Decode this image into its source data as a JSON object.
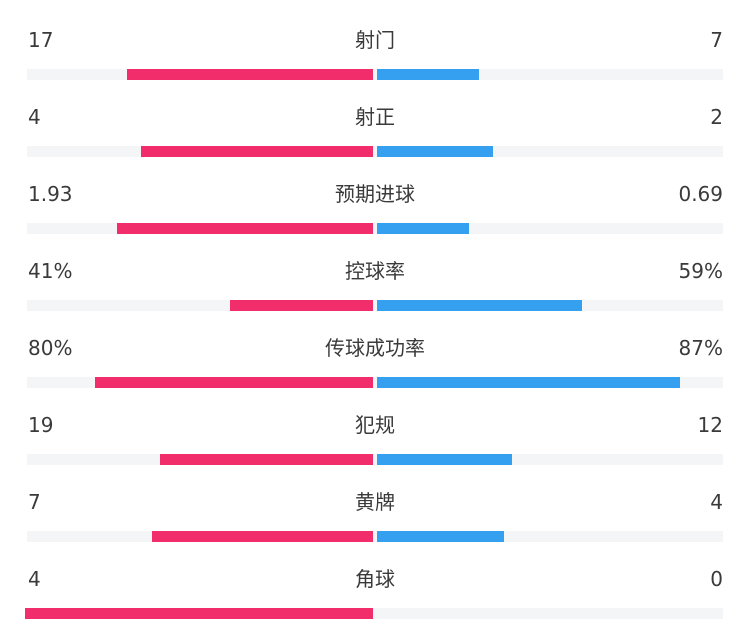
{
  "colors": {
    "home": "#f22d6c",
    "away": "#35a0f0",
    "track": "#f4f5f7"
  },
  "chart_data": {
    "type": "bar",
    "orientation": "diverging-horizontal",
    "categories": [
      "射门",
      "射正",
      "预期进球",
      "控球率",
      "传球成功率",
      "犯规",
      "黄牌",
      "角球"
    ],
    "rows": [
      {
        "label": "射门",
        "left": "17",
        "right": "7",
        "lval": 17,
        "rval": 7
      },
      {
        "label": "射正",
        "left": "4",
        "right": "2",
        "lval": 4,
        "rval": 2
      },
      {
        "label": "预期进球",
        "left": "1.93",
        "right": "0.69",
        "lval": 1.93,
        "rval": 0.69
      },
      {
        "label": "控球率",
        "left": "41%",
        "right": "59%",
        "lval": 41,
        "rval": 59,
        "percent": true
      },
      {
        "label": "传球成功率",
        "left": "80%",
        "right": "87%",
        "lval": 80,
        "rval": 87,
        "percent": true
      },
      {
        "label": "犯规",
        "left": "19",
        "right": "12",
        "lval": 19,
        "rval": 12
      },
      {
        "label": "黄牌",
        "left": "7",
        "right": "4",
        "lval": 7,
        "rval": 4
      },
      {
        "label": "角球",
        "left": "4",
        "right": "0",
        "lval": 4,
        "rval": 0
      }
    ]
  }
}
